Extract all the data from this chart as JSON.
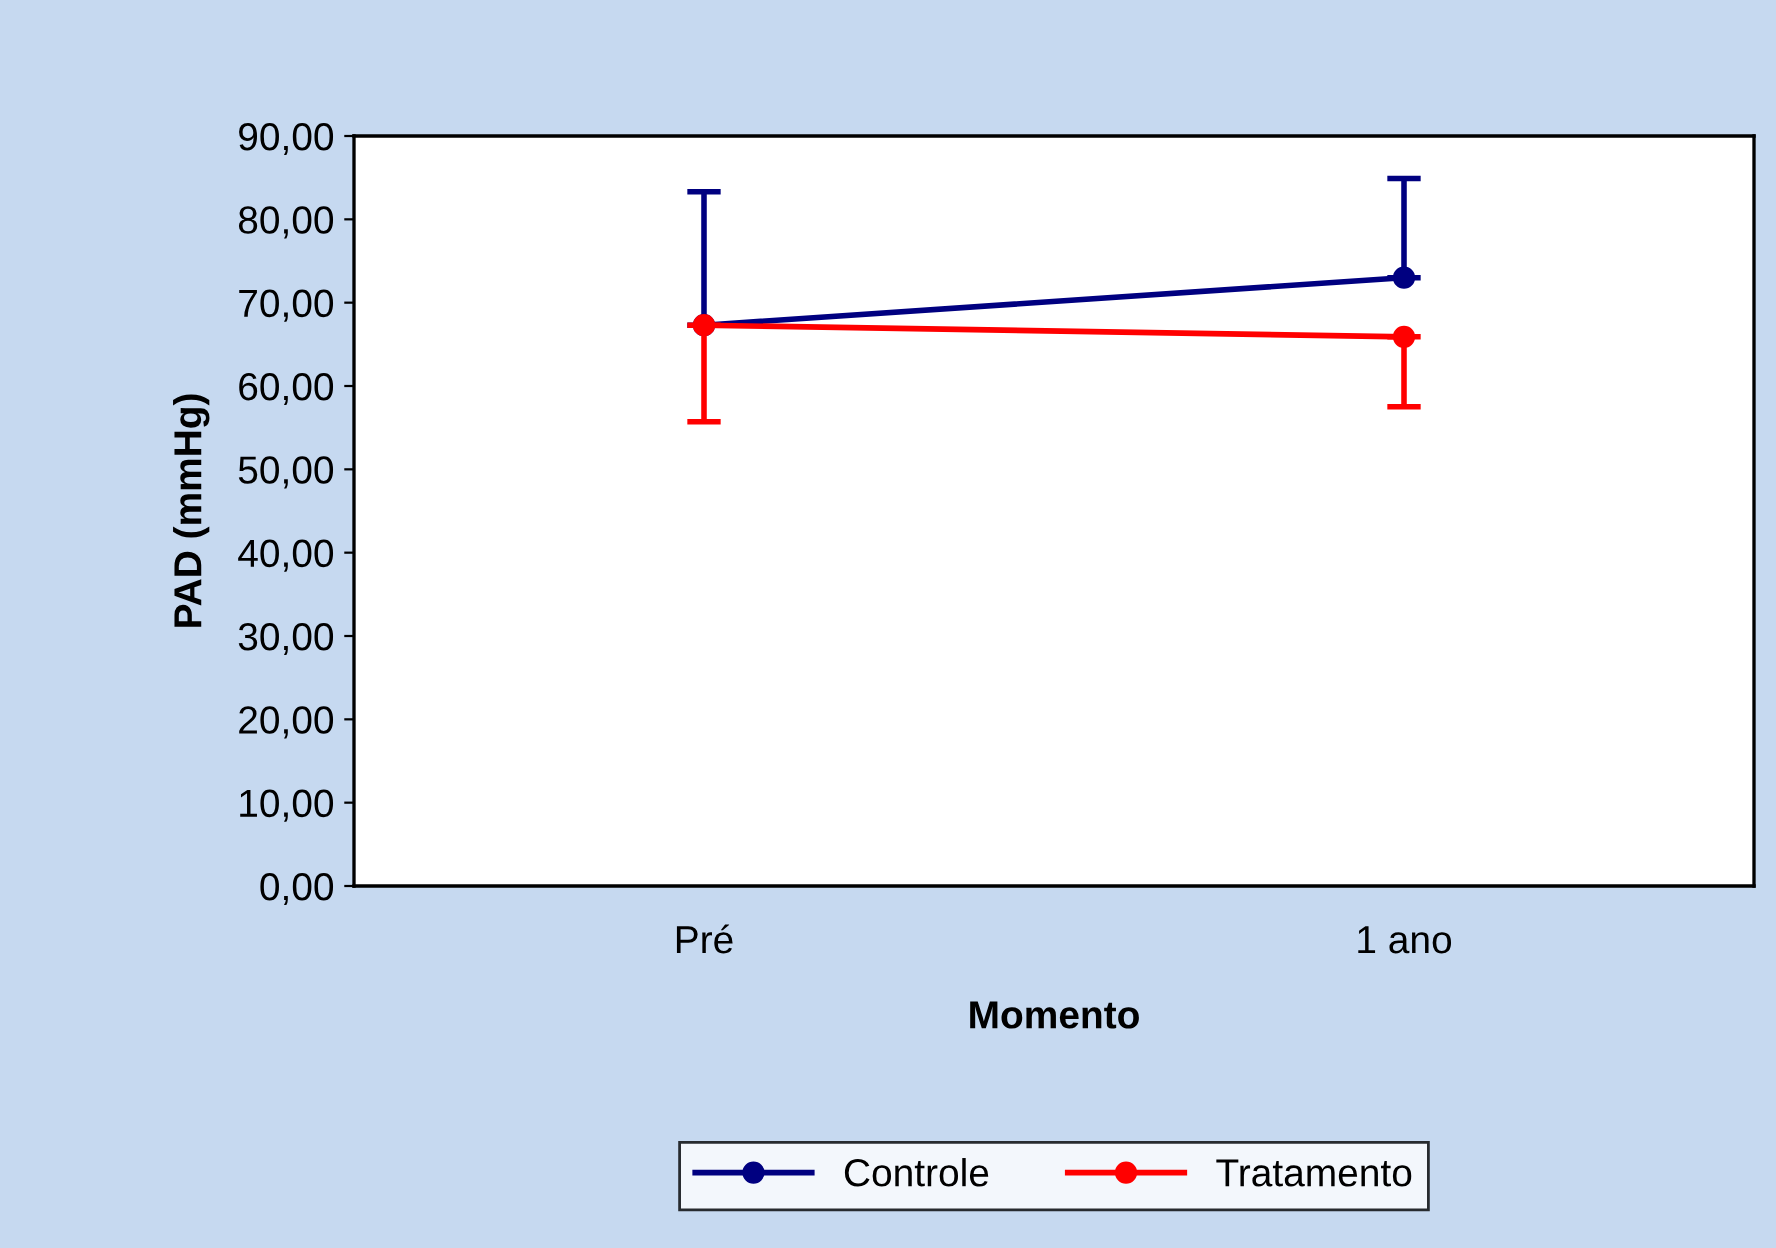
{
  "chart_data": {
    "type": "line",
    "xlabel": "Momento",
    "ylabel": "PAD (mmHg)",
    "categories": [
      "Pré",
      "1 ano"
    ],
    "series": [
      {
        "name": "Controle",
        "color": "#000080",
        "values": [
          67.3,
          73.0
        ],
        "errors": [
          [
            67.3,
            83.3
          ],
          [
            73.0,
            84.9
          ]
        ]
      },
      {
        "name": "Tratamento",
        "color": "#ff0000",
        "values": [
          67.3,
          65.9
        ],
        "errors": [
          [
            55.7,
            67.3
          ],
          [
            57.5,
            65.9
          ]
        ]
      }
    ],
    "ylim": [
      0,
      90
    ],
    "yticks": [
      {
        "value": 0,
        "label": "0,00"
      },
      {
        "value": 10,
        "label": "10,00"
      },
      {
        "value": 20,
        "label": "20,00"
      },
      {
        "value": 30,
        "label": "30,00"
      },
      {
        "value": 40,
        "label": "40,00"
      },
      {
        "value": 50,
        "label": "50,00"
      },
      {
        "value": 60,
        "label": "60,00"
      },
      {
        "value": 70,
        "label": "70,00"
      },
      {
        "value": 80,
        "label": "80,00"
      },
      {
        "value": 90,
        "label": "90,00"
      }
    ],
    "grid": false,
    "legend": "bottom",
    "marker": "circle",
    "line_style": "solid"
  }
}
